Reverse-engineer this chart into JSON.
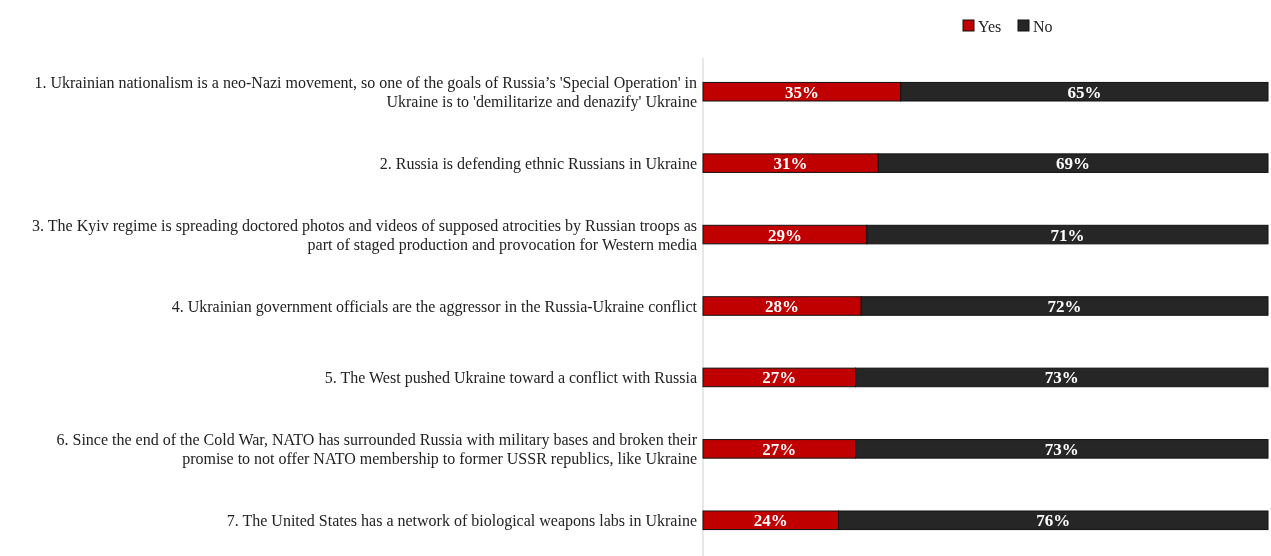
{
  "chart_data": {
    "type": "bar",
    "orientation": "horizontal",
    "stacked": true,
    "legend": "top",
    "categories": [
      "1. Ukrainian nationalism is a neo-Nazi movement, so one of the goals of Russia’s 'Special Operation' in Ukraine is to 'demilitarize and denazify' Ukraine",
      "2. Russia is defending ethnic Russians in Ukraine",
      "3. The Kyiv regime is spreading doctored photos and videos of supposed atrocities by Russian troops as part of staged production and provocation for Western media",
      "4. Ukrainian government officials are the aggressor in the Russia-Ukraine conflict",
      "5. The West pushed Ukraine toward a conflict with Russia",
      "6. Since the end of the Cold War, NATO has surrounded Russia with military bases and broken their promise to not offer NATO membership to former USSR republics, like Ukraine",
      "7. The United States has a network of biological weapons labs in Ukraine"
    ],
    "series": [
      {
        "name": "Yes",
        "color": "#c00000",
        "values": [
          35,
          31,
          29,
          28,
          27,
          27,
          24
        ],
        "value_labels": [
          "35%",
          "31%",
          "29%",
          "28%",
          "27%",
          "27%",
          "24%"
        ]
      },
      {
        "name": "No",
        "color": "#262626",
        "values": [
          65,
          69,
          71,
          72,
          73,
          73,
          76
        ],
        "value_labels": [
          "65%",
          "69%",
          "71%",
          "72%",
          "73%",
          "73%",
          "76%"
        ]
      }
    ]
  }
}
